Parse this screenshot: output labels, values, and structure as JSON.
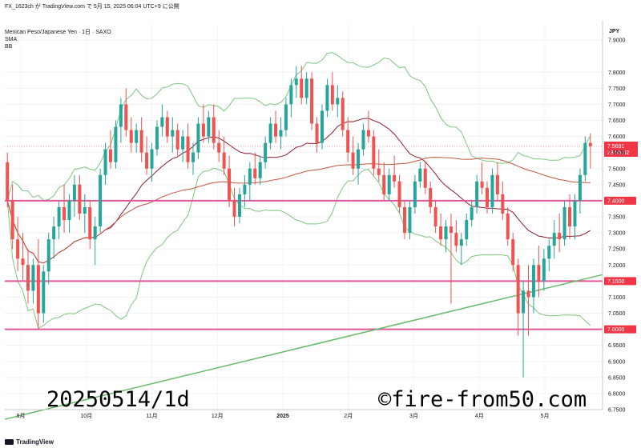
{
  "header": {
    "top_line": "FX_1623ch が TradingView.com で 5月 15, 2025 06:04 UTC+9 に公開",
    "symbol_line": "Mexican Peso/Japanese Yen · 1日 · SAXO",
    "indicator_1": "SMA",
    "indicator_2": "BB"
  },
  "footer": {
    "logo_text": "TradingView"
  },
  "watermark": {
    "left": "20250514/1d",
    "right": "©fire-from50.com"
  },
  "colors": {
    "up": "#26a69a",
    "down": "#ef5350",
    "sma": "#8b1e2d",
    "bb_mid": "#c05440",
    "bb_band": "#7dc67d",
    "level_line": "#e0569a",
    "trend": "#66bb6a",
    "price_tag": "#f23645"
  },
  "chart_data": {
    "type": "candlestick",
    "currency_label": "JPY",
    "x_axis_labels": [
      "9月",
      "10月",
      "11月",
      "12月",
      "2025",
      "2月",
      "3月",
      "4月",
      "5月"
    ],
    "y_ticks": [
      "7.9000",
      "7.8000",
      "7.7500",
      "7.7000",
      "7.6500",
      "7.6000",
      "7.5500",
      "7.5000",
      "7.4500",
      "7.3500",
      "7.3000",
      "7.2500",
      "7.2000",
      "7.1000",
      "7.0500",
      "6.9500",
      "6.9000",
      "6.8500",
      "6.8000",
      "6.7500"
    ],
    "ylim": [
      6.75,
      7.95
    ],
    "horizontal_levels": [
      {
        "value": 7.4,
        "label": "7.4000"
      },
      {
        "value": 7.15,
        "label": "7.1500"
      },
      {
        "value": 7.0,
        "label": "7.0000"
      }
    ],
    "last_price": {
      "value": "7.5691",
      "countdown": "23:55:32"
    },
    "trendline": {
      "start": {
        "x": 0.0,
        "y": 6.72
      },
      "end": {
        "x": 1.0,
        "y": 7.17
      }
    },
    "candles_ohlc": [
      [
        7.52,
        7.55,
        7.38,
        7.4
      ],
      [
        7.4,
        7.45,
        7.25,
        7.28
      ],
      [
        7.28,
        7.35,
        7.18,
        7.22
      ],
      [
        7.22,
        7.3,
        7.15,
        7.2
      ],
      [
        7.2,
        7.25,
        7.08,
        7.12
      ],
      [
        7.12,
        7.22,
        7.08,
        7.2
      ],
      [
        7.2,
        7.28,
        7.0,
        7.05
      ],
      [
        7.05,
        7.2,
        7.02,
        7.18
      ],
      [
        7.18,
        7.3,
        7.14,
        7.28
      ],
      [
        7.28,
        7.35,
        7.22,
        7.32
      ],
      [
        7.32,
        7.4,
        7.28,
        7.38
      ],
      [
        7.38,
        7.45,
        7.3,
        7.34
      ],
      [
        7.34,
        7.42,
        7.3,
        7.4
      ],
      [
        7.4,
        7.48,
        7.35,
        7.45
      ],
      [
        7.45,
        7.48,
        7.34,
        7.36
      ],
      [
        7.36,
        7.42,
        7.3,
        7.38
      ],
      [
        7.38,
        7.4,
        7.25,
        7.28
      ],
      [
        7.28,
        7.35,
        7.2,
        7.32
      ],
      [
        7.32,
        7.5,
        7.3,
        7.48
      ],
      [
        7.48,
        7.58,
        7.45,
        7.56
      ],
      [
        7.56,
        7.62,
        7.5,
        7.52
      ],
      [
        7.52,
        7.65,
        7.5,
        7.63
      ],
      [
        7.63,
        7.72,
        7.58,
        7.7
      ],
      [
        7.7,
        7.75,
        7.6,
        7.62
      ],
      [
        7.62,
        7.66,
        7.55,
        7.58
      ],
      [
        7.58,
        7.64,
        7.55,
        7.62
      ],
      [
        7.62,
        7.66,
        7.52,
        7.55
      ],
      [
        7.55,
        7.6,
        7.48,
        7.5
      ],
      [
        7.5,
        7.58,
        7.46,
        7.56
      ],
      [
        7.56,
        7.65,
        7.54,
        7.63
      ],
      [
        7.63,
        7.7,
        7.6,
        7.66
      ],
      [
        7.66,
        7.68,
        7.58,
        7.6
      ],
      [
        7.6,
        7.66,
        7.55,
        7.62
      ],
      [
        7.62,
        7.64,
        7.54,
        7.56
      ],
      [
        7.56,
        7.62,
        7.52,
        7.6
      ],
      [
        7.6,
        7.64,
        7.5,
        7.52
      ],
      [
        7.52,
        7.58,
        7.48,
        7.55
      ],
      [
        7.55,
        7.66,
        7.53,
        7.64
      ],
      [
        7.64,
        7.7,
        7.58,
        7.6
      ],
      [
        7.6,
        7.68,
        7.58,
        7.66
      ],
      [
        7.66,
        7.7,
        7.56,
        7.58
      ],
      [
        7.58,
        7.62,
        7.52,
        7.55
      ],
      [
        7.55,
        7.6,
        7.48,
        7.5
      ],
      [
        7.5,
        7.54,
        7.38,
        7.4
      ],
      [
        7.4,
        7.44,
        7.32,
        7.35
      ],
      [
        7.35,
        7.44,
        7.33,
        7.42
      ],
      [
        7.42,
        7.48,
        7.38,
        7.45
      ],
      [
        7.45,
        7.52,
        7.4,
        7.5
      ],
      [
        7.5,
        7.55,
        7.45,
        7.47
      ],
      [
        7.47,
        7.54,
        7.45,
        7.52
      ],
      [
        7.52,
        7.6,
        7.5,
        7.58
      ],
      [
        7.58,
        7.66,
        7.56,
        7.64
      ],
      [
        7.64,
        7.68,
        7.58,
        7.6
      ],
      [
        7.6,
        7.66,
        7.56,
        7.62
      ],
      [
        7.62,
        7.72,
        7.6,
        7.7
      ],
      [
        7.7,
        7.78,
        7.66,
        7.76
      ],
      [
        7.76,
        7.82,
        7.72,
        7.78
      ],
      [
        7.78,
        7.82,
        7.7,
        7.72
      ],
      [
        7.72,
        7.8,
        7.7,
        7.78
      ],
      [
        7.78,
        7.8,
        7.62,
        7.64
      ],
      [
        7.64,
        7.66,
        7.55,
        7.58
      ],
      [
        7.58,
        7.7,
        7.56,
        7.68
      ],
      [
        7.68,
        7.78,
        7.66,
        7.76
      ],
      [
        7.76,
        7.8,
        7.68,
        7.7
      ],
      [
        7.7,
        7.76,
        7.66,
        7.72
      ],
      [
        7.72,
        7.74,
        7.6,
        7.62
      ],
      [
        7.62,
        7.66,
        7.52,
        7.55
      ],
      [
        7.55,
        7.6,
        7.48,
        7.5
      ],
      [
        7.5,
        7.58,
        7.45,
        7.56
      ],
      [
        7.56,
        7.64,
        7.54,
        7.62
      ],
      [
        7.62,
        7.68,
        7.58,
        7.6
      ],
      [
        7.6,
        7.62,
        7.48,
        7.5
      ],
      [
        7.5,
        7.56,
        7.46,
        7.48
      ],
      [
        7.48,
        7.52,
        7.4,
        7.42
      ],
      [
        7.42,
        7.5,
        7.4,
        7.48
      ],
      [
        7.48,
        7.54,
        7.44,
        7.46
      ],
      [
        7.46,
        7.48,
        7.36,
        7.38
      ],
      [
        7.38,
        7.4,
        7.28,
        7.3
      ],
      [
        7.3,
        7.4,
        7.28,
        7.38
      ],
      [
        7.38,
        7.48,
        7.36,
        7.46
      ],
      [
        7.46,
        7.52,
        7.44,
        7.5
      ],
      [
        7.5,
        7.52,
        7.42,
        7.44
      ],
      [
        7.44,
        7.46,
        7.36,
        7.38
      ],
      [
        7.38,
        7.4,
        7.3,
        7.32
      ],
      [
        7.32,
        7.36,
        7.26,
        7.28
      ],
      [
        7.28,
        7.34,
        7.24,
        7.32
      ],
      [
        7.32,
        7.36,
        7.08,
        7.3
      ],
      [
        7.3,
        7.34,
        7.24,
        7.26
      ],
      [
        7.26,
        7.3,
        7.2,
        7.28
      ],
      [
        7.28,
        7.36,
        7.26,
        7.34
      ],
      [
        7.34,
        7.4,
        7.32,
        7.38
      ],
      [
        7.38,
        7.48,
        7.36,
        7.46
      ],
      [
        7.46,
        7.52,
        7.42,
        7.44
      ],
      [
        7.44,
        7.46,
        7.36,
        7.38
      ],
      [
        7.38,
        7.5,
        7.36,
        7.48
      ],
      [
        7.48,
        7.52,
        7.4,
        7.42
      ],
      [
        7.42,
        7.46,
        7.34,
        7.36
      ],
      [
        7.36,
        7.38,
        7.26,
        7.28
      ],
      [
        7.28,
        7.3,
        7.18,
        7.2
      ],
      [
        7.2,
        7.22,
        6.98,
        7.05
      ],
      [
        7.05,
        7.15,
        6.85,
        7.12
      ],
      [
        7.12,
        7.2,
        6.98,
        7.1
      ],
      [
        7.1,
        7.22,
        7.05,
        7.2
      ],
      [
        7.2,
        7.26,
        7.1,
        7.15
      ],
      [
        7.15,
        7.25,
        7.12,
        7.22
      ],
      [
        7.22,
        7.28,
        7.18,
        7.26
      ],
      [
        7.26,
        7.34,
        7.22,
        7.3
      ],
      [
        7.3,
        7.36,
        7.24,
        7.28
      ],
      [
        7.28,
        7.4,
        7.26,
        7.38
      ],
      [
        7.38,
        7.42,
        7.28,
        7.32
      ],
      [
        7.32,
        7.42,
        7.28,
        7.4
      ],
      [
        7.4,
        7.5,
        7.36,
        7.48
      ],
      [
        7.48,
        7.6,
        7.46,
        7.58
      ],
      [
        7.58,
        7.61,
        7.5,
        7.57
      ]
    ]
  }
}
